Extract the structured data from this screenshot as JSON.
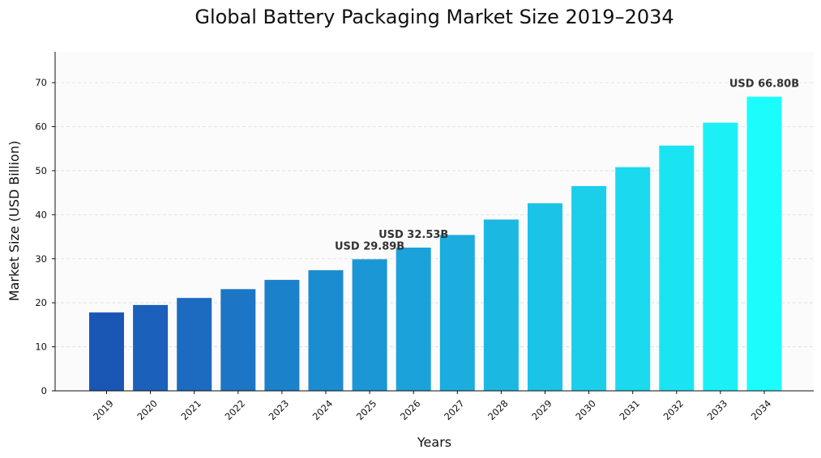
{
  "chart_data": {
    "type": "bar",
    "title": "Global Battery Packaging Market Size 2019–2034",
    "xlabel": "Years",
    "ylabel": "Market Size (USD Billion)",
    "categories": [
      "2019",
      "2020",
      "2021",
      "2022",
      "2023",
      "2024",
      "2025",
      "2026",
      "2027",
      "2028",
      "2029",
      "2030",
      "2031",
      "2032",
      "2033",
      "2034"
    ],
    "values": [
      17.8,
      19.5,
      21.1,
      23.1,
      25.2,
      27.4,
      29.89,
      32.53,
      35.4,
      38.9,
      42.6,
      46.5,
      50.8,
      55.7,
      60.9,
      66.8
    ],
    "ylim": [
      0,
      77
    ],
    "yticks": [
      0,
      10,
      20,
      30,
      40,
      50,
      60,
      70
    ],
    "grid": true,
    "colors": [
      "#1a56b4",
      "#1b60ba",
      "#1c6bc0",
      "#1c76c5",
      "#1c81cb",
      "#1c8cd0",
      "#1b97d5",
      "#1ba2da",
      "#1badde",
      "#1bb8e2",
      "#1bc3e6",
      "#1bceea",
      "#1bd9ee",
      "#1be4f2",
      "#1bf0f7",
      "#1bfdfd"
    ],
    "annotations": [
      {
        "index": 6,
        "text": "USD 29.89B"
      },
      {
        "index": 7,
        "text": "USD 32.53B"
      },
      {
        "index": 15,
        "text": "USD 66.80B"
      }
    ]
  }
}
